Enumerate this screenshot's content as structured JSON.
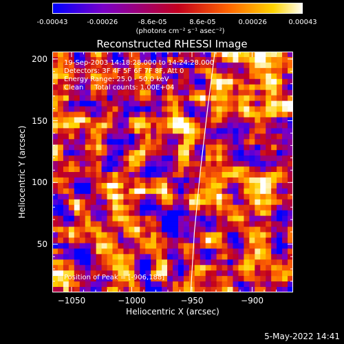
{
  "colorbar": {
    "tick_labels": [
      "-0.00043",
      "-0.00026",
      "-8.6e-05",
      "8.6e-05",
      "0.00026",
      "0.00043"
    ],
    "units": "(photons cm⁻² s⁻¹ asec⁻²)"
  },
  "chart_data": {
    "type": "heatmap",
    "title": "Reconstructed RHESSI Image",
    "xlabel": "Heliocentric X (arcsec)",
    "ylabel": "Heliocentric Y (arcsec)",
    "xlim": [
      -1066,
      -866
    ],
    "ylim": [
      11,
      206
    ],
    "x_ticks": [
      -1050,
      -1000,
      -950,
      -900
    ],
    "y_ticks": [
      50,
      100,
      150,
      200
    ],
    "x_tick_labels": [
      "−1050",
      "−1000",
      "−950",
      "−900"
    ],
    "y_tick_labels": [
      "50",
      "100",
      "150",
      "200"
    ],
    "limb_curve": [
      [
        -951,
        11
      ],
      [
        -948,
        60
      ],
      [
        -943,
        110
      ],
      [
        -937,
        160
      ],
      [
        -931,
        206
      ]
    ],
    "peak": [
      -906,
      188
    ],
    "colormap": [
      "#0000ff",
      "#7a00c8",
      "#c2001e",
      "#ff6400",
      "#ffd400",
      "#ffffff"
    ]
  },
  "annotations": {
    "time_range": "19-Sep-2003 14:18:28.000 to 14:24:28.000",
    "detectors": "Detectors: 3F 4F 5F 6F 7F 8F, Att 0",
    "energy": "Energy Range: 25.0 - 50.0 keV",
    "clean": "Clean     Total counts: 1.00E+04",
    "peak": "Position of Peak = [-906,188]"
  },
  "timestamp": "5-May-2022 14:41"
}
